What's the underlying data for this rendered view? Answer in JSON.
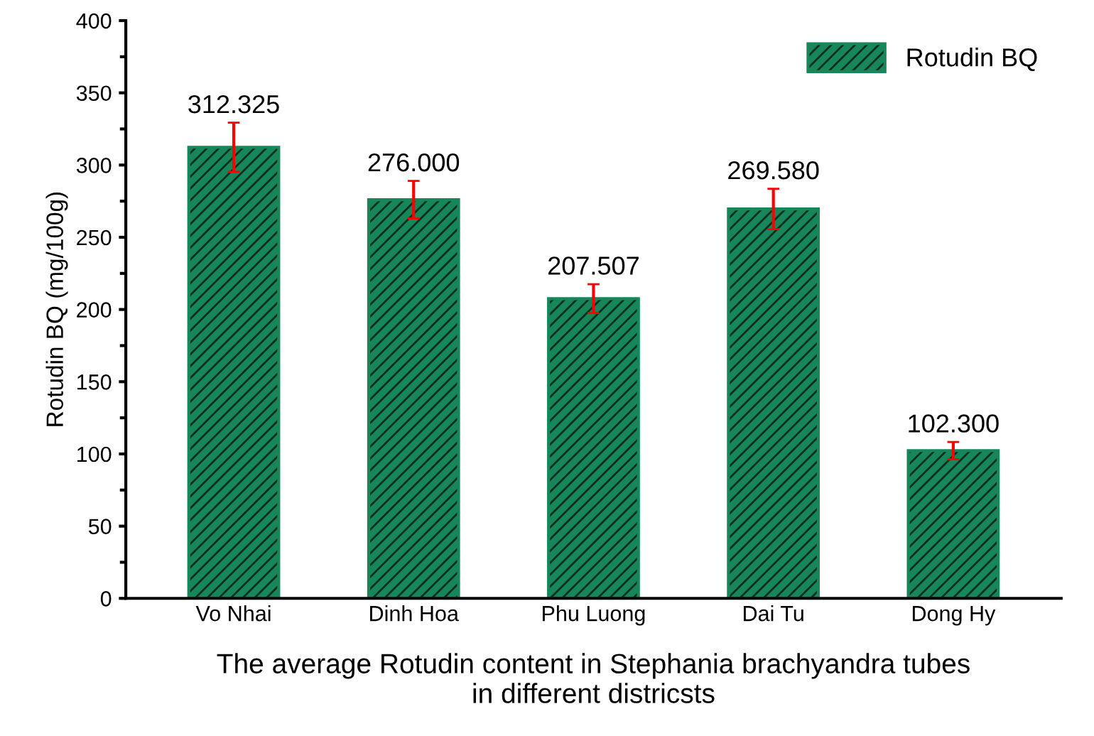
{
  "chart_data": {
    "type": "bar",
    "categories": [
      "Vo Nhai",
      "Dinh Hoa",
      "Phu Luong",
      "Dai Tu",
      "Dong Hy"
    ],
    "series": [
      {
        "name": "Rotudin BQ",
        "color": "#17875a",
        "values": [
          312.325,
          276.0,
          207.507,
          269.58,
          102.3
        ],
        "errors": [
          17,
          13,
          10,
          14,
          6
        ],
        "value_labels": [
          "312.325",
          "276.000",
          "207.507",
          "269.580",
          "102.300"
        ]
      }
    ],
    "ylabel": "Rotudin BQ (mg/100g)",
    "xlabel": "The average Rotudin content in Stephania brachyandra tubes\nin different districsts",
    "ylim": [
      0,
      400
    ],
    "yticks": [
      0,
      50,
      100,
      150,
      200,
      250,
      300,
      350,
      400
    ],
    "grid": false,
    "legend": "top right"
  }
}
